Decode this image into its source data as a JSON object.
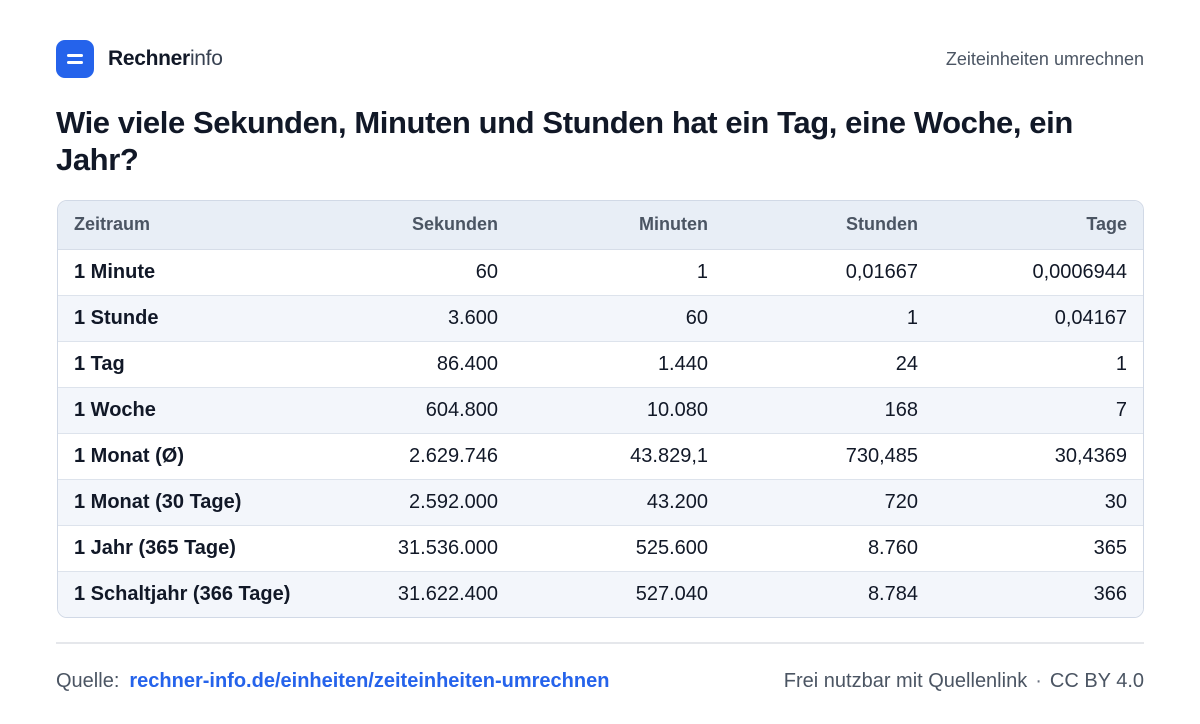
{
  "brand": {
    "name_bold": "Rechner",
    "name_light": "info",
    "logo_icon": "menu-bars-icon",
    "accent": "#2563eb"
  },
  "header": {
    "nav_link": "Zeiteinheiten umrechnen"
  },
  "title": "Wie viele Sekunden, Minuten und Stunden hat ein Tag, eine Woche, ein Jahr?",
  "table": {
    "headers": [
      "Zeitraum",
      "Sekunden",
      "Minuten",
      "Stunden",
      "Tage"
    ],
    "rows": [
      [
        "1 Minute",
        "60",
        "1",
        "0,01667",
        "0,0006944"
      ],
      [
        "1 Stunde",
        "3.600",
        "60",
        "1",
        "0,04167"
      ],
      [
        "1 Tag",
        "86.400",
        "1.440",
        "24",
        "1"
      ],
      [
        "1 Woche",
        "604.800",
        "10.080",
        "168",
        "7"
      ],
      [
        "1 Monat (Ø)",
        "2.629.746",
        "43.829,1",
        "730,485",
        "30,4369"
      ],
      [
        "1 Monat (30 Tage)",
        "2.592.000",
        "43.200",
        "720",
        "30"
      ],
      [
        "1 Jahr (365 Tage)",
        "31.536.000",
        "525.600",
        "8.760",
        "365"
      ],
      [
        "1 Schaltjahr (366 Tage)",
        "31.622.400",
        "527.040",
        "8.784",
        "366"
      ]
    ]
  },
  "footer": {
    "source_label": "Quelle:",
    "source_link": "rechner-info.de/einheiten/zeiteinheiten-umrechnen",
    "usage_note": "Frei nutzbar mit Quellenlink",
    "separator": "·",
    "license": "CC BY 4.0"
  }
}
